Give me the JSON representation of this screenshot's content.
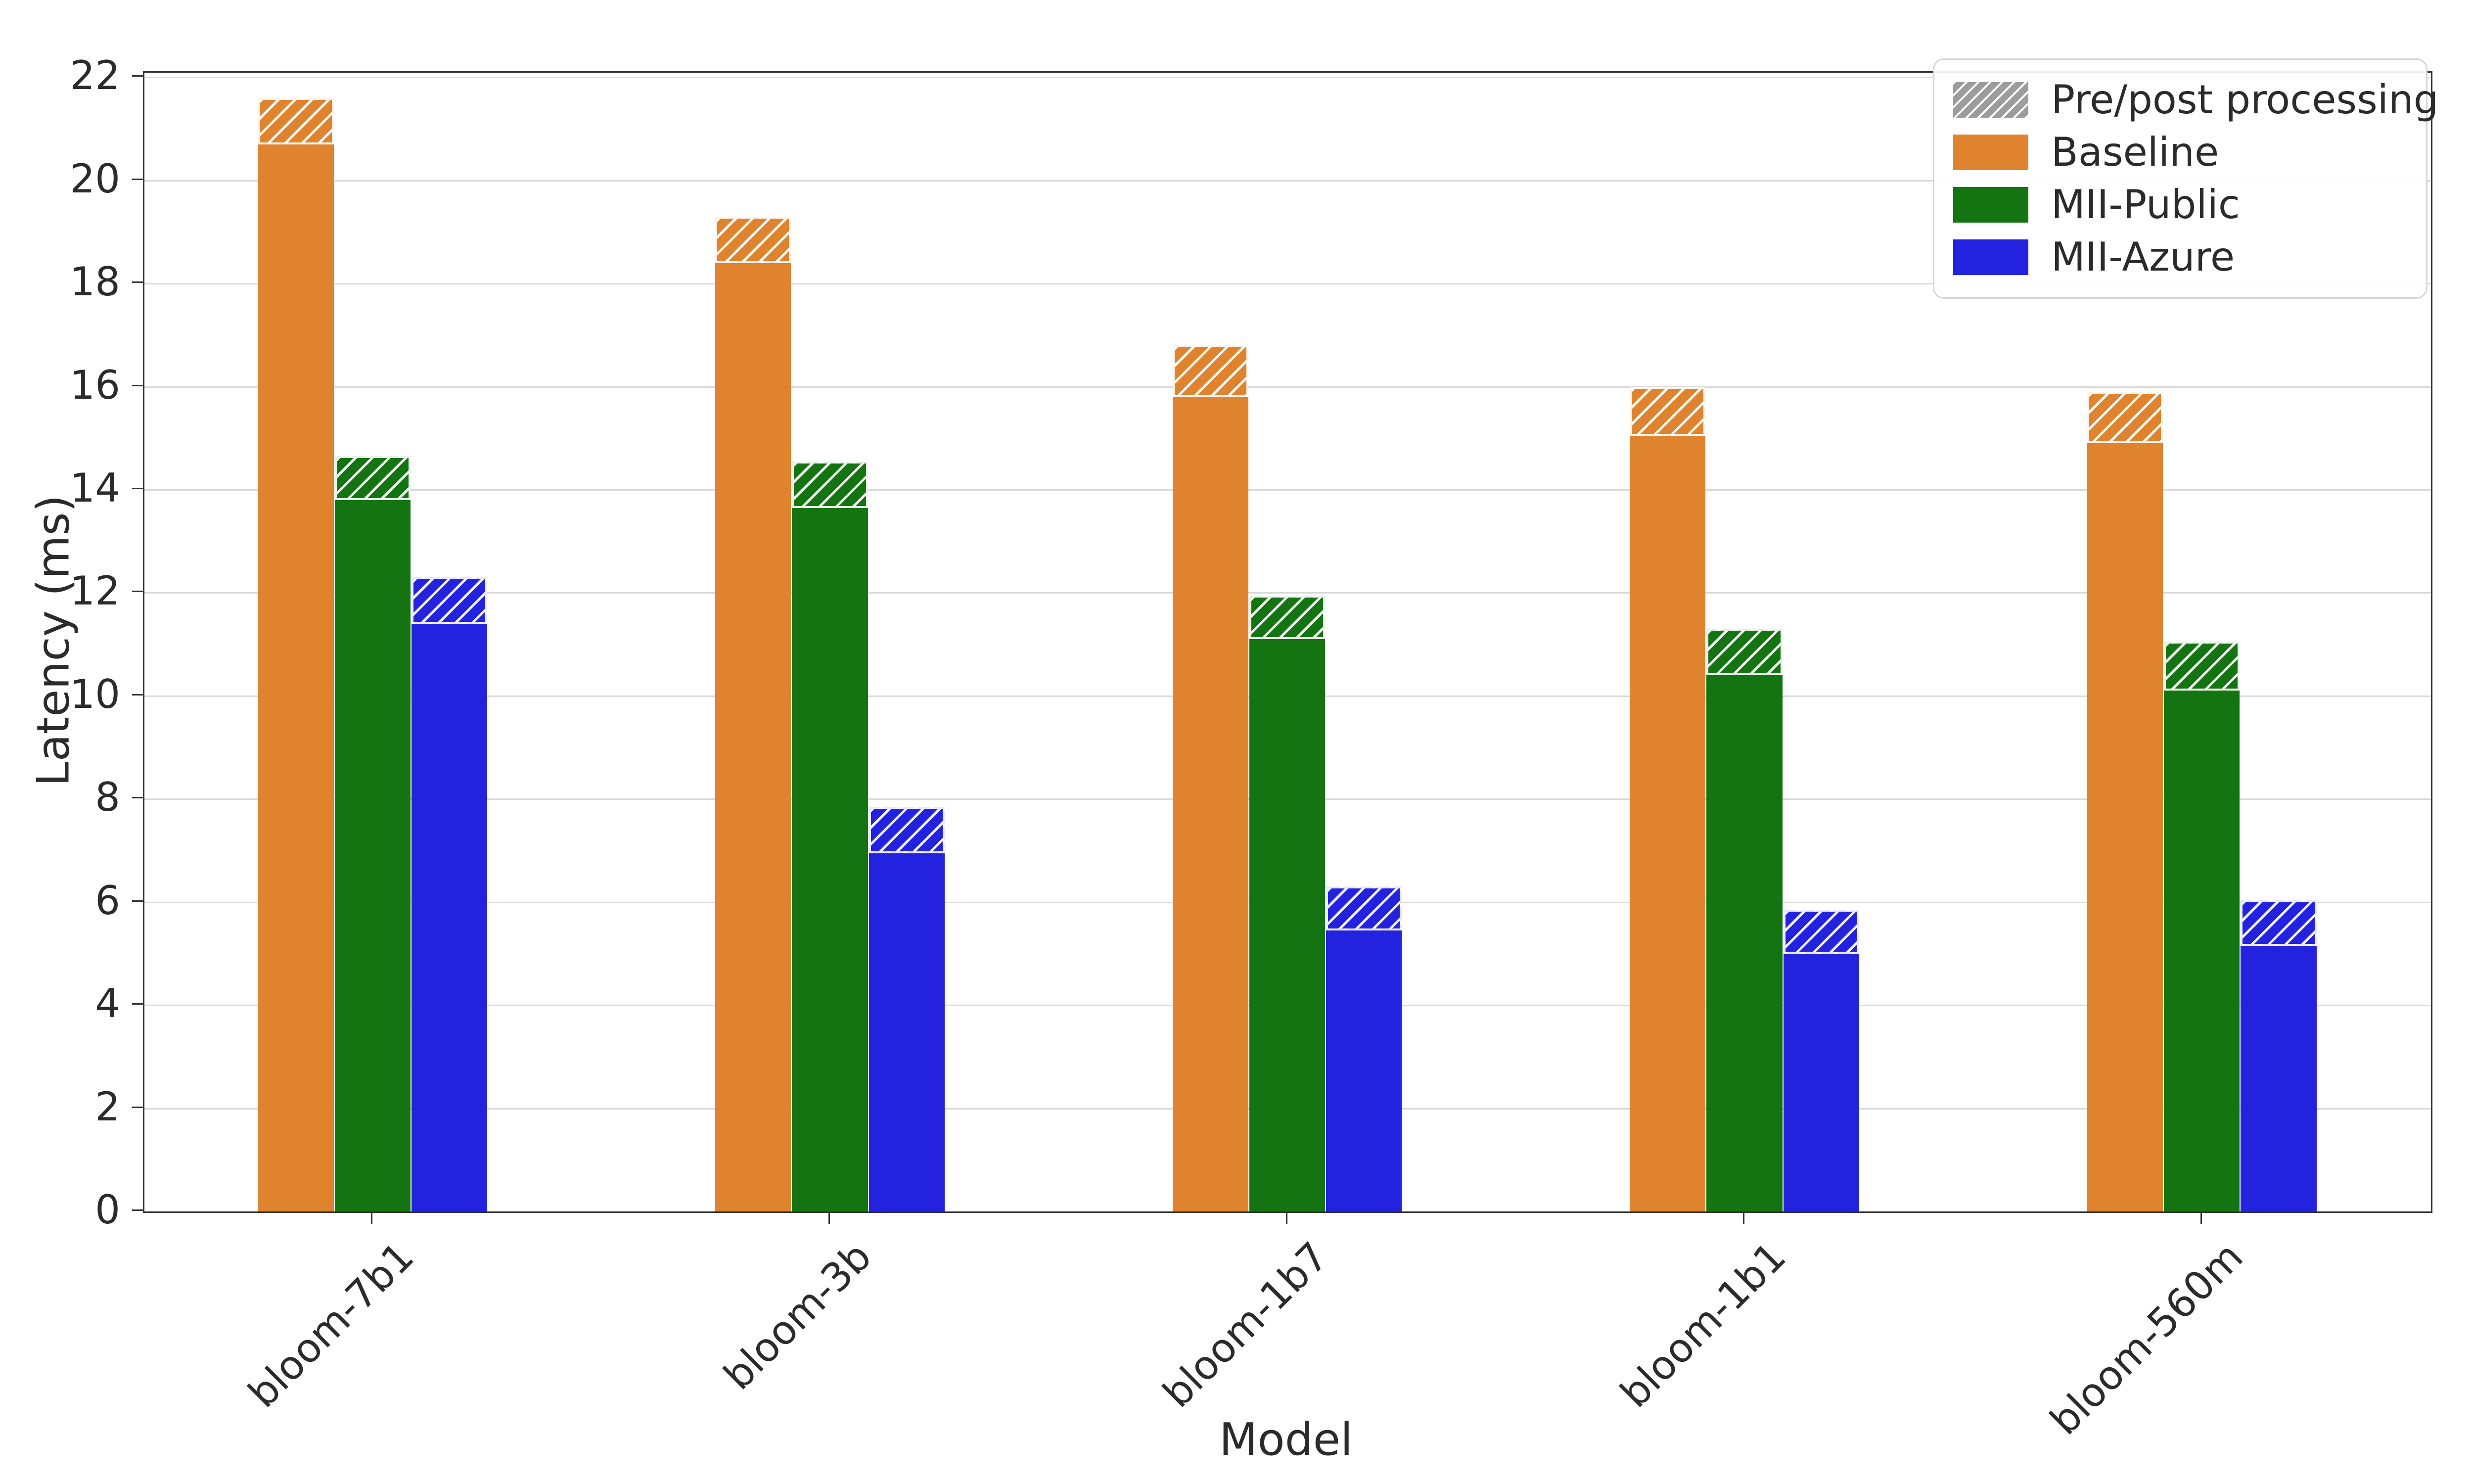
{
  "chart_data": {
    "type": "bar",
    "title": "",
    "xlabel": "Model",
    "ylabel": "Latency (ms)",
    "ylim": [
      0,
      22.09
    ],
    "yticks": [
      0,
      2,
      4,
      6,
      8,
      10,
      12,
      14,
      16,
      18,
      20,
      22
    ],
    "grid": true,
    "legend_position": "upper right",
    "categories": [
      "bloom-7b1",
      "bloom-3b",
      "bloom-1b7",
      "bloom-1b1",
      "bloom-560m"
    ],
    "series": [
      {
        "name": "Baseline",
        "color": "#e0832e",
        "values": [
          20.7,
          18.4,
          15.8,
          15.05,
          14.9
        ],
        "totals_with_prepost": [
          21.6,
          19.3,
          16.8,
          16.0,
          15.9
        ]
      },
      {
        "name": "MII-Public",
        "color": "#147412",
        "values": [
          13.8,
          13.65,
          11.1,
          10.4,
          10.1
        ],
        "totals_with_prepost": [
          14.65,
          14.55,
          11.95,
          11.3,
          11.05
        ]
      },
      {
        "name": "MII-Azure",
        "color": "#2322de",
        "values": [
          11.4,
          6.95,
          5.45,
          5.0,
          5.15
        ],
        "totals_with_prepost": [
          12.3,
          7.85,
          6.3,
          5.85,
          6.05
        ]
      }
    ],
    "hatched_overlay_label": "Pre/post processing",
    "hatch_style": "white diagonal stripes (/) on series color"
  },
  "legend": {
    "items": [
      {
        "label": "Pre/post processing",
        "swatch": "hatched-gray",
        "color": "#9c9c9c"
      },
      {
        "label": "Baseline",
        "swatch": "solid",
        "color": "#e0832e"
      },
      {
        "label": "MII-Public",
        "swatch": "solid",
        "color": "#147412"
      },
      {
        "label": "MII-Azure",
        "swatch": "solid",
        "color": "#2322de"
      }
    ]
  },
  "axes": {
    "y_label": "Latency (ms)",
    "x_label": "Model",
    "y_tick_labels": [
      "0",
      "2",
      "4",
      "6",
      "8",
      "10",
      "12",
      "14",
      "16",
      "18",
      "20",
      "22"
    ],
    "x_tick_labels": [
      "bloom-7b1",
      "bloom-3b",
      "bloom-1b7",
      "bloom-1b1",
      "bloom-560m"
    ]
  },
  "colors": {
    "background": "#ffffff",
    "gridline": "#d9d9d9",
    "spine": "#333333",
    "text": "#2b2b2b",
    "baseline": "#e0832e",
    "mii_public": "#147412",
    "mii_azure": "#2322de",
    "prepost_gray": "#9c9c9c"
  }
}
